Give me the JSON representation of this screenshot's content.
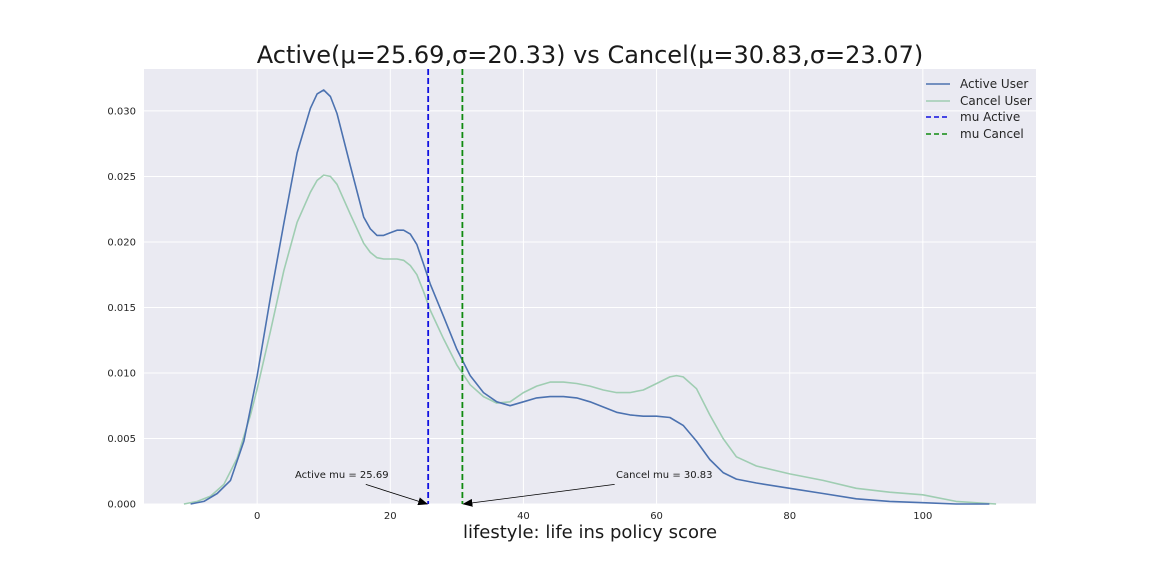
{
  "chart_data": {
    "type": "line",
    "title": "Active(μ=25.69,σ=20.33) vs Cancel(μ=30.83,σ=23.07)",
    "xlabel": "lifestyle: life ins policy score",
    "ylabel": "",
    "xlim": [
      -17,
      117
    ],
    "ylim": [
      0,
      0.0332
    ],
    "xticks": [
      0,
      20,
      40,
      60,
      80,
      100
    ],
    "yticks": [
      0.0,
      0.005,
      0.01,
      0.015,
      0.02,
      0.025,
      0.03
    ],
    "ytick_labels": [
      "0.000",
      "0.005",
      "0.010",
      "0.015",
      "0.020",
      "0.025",
      "0.030"
    ],
    "grid": true,
    "legend_position": "top-right",
    "colors": {
      "background": "#eaeaf2",
      "grid": "#ffffff",
      "active": "#4c72b0",
      "cancel": "#9fcdb2",
      "mu_active": "#1010e0",
      "mu_cancel": "#108a10"
    },
    "series": [
      {
        "name": "Active User",
        "x": [
          -10,
          -8,
          -6,
          -4,
          -2,
          0,
          2,
          4,
          6,
          8,
          9,
          10,
          11,
          12,
          14,
          16,
          17,
          18,
          19,
          20,
          21,
          22,
          23,
          24,
          25,
          26,
          28,
          30,
          32,
          34,
          36,
          38,
          40,
          42,
          44,
          46,
          48,
          50,
          52,
          54,
          56,
          58,
          60,
          62,
          64,
          66,
          68,
          70,
          72,
          75,
          80,
          85,
          90,
          95,
          100,
          105,
          110
        ],
        "values": [
          0.0,
          0.0002,
          0.0008,
          0.0018,
          0.0048,
          0.0098,
          0.0158,
          0.0214,
          0.0268,
          0.0302,
          0.0313,
          0.0316,
          0.0311,
          0.0298,
          0.0258,
          0.0219,
          0.021,
          0.0205,
          0.0205,
          0.0207,
          0.0209,
          0.0209,
          0.0206,
          0.0198,
          0.0183,
          0.0168,
          0.0143,
          0.0118,
          0.0098,
          0.0085,
          0.0078,
          0.0075,
          0.0078,
          0.0081,
          0.0082,
          0.0082,
          0.0081,
          0.0078,
          0.0074,
          0.007,
          0.0068,
          0.0067,
          0.0067,
          0.0066,
          0.006,
          0.0048,
          0.0034,
          0.0024,
          0.0019,
          0.0016,
          0.0012,
          0.0008,
          0.0004,
          0.0002,
          0.0001,
          0.0,
          0.0
        ]
      },
      {
        "name": "Cancel User",
        "x": [
          -11,
          -9,
          -7,
          -5,
          -3,
          -1,
          0,
          2,
          4,
          6,
          8,
          9,
          10,
          11,
          12,
          14,
          16,
          17,
          18,
          19,
          20,
          21,
          22,
          23,
          24,
          25,
          26,
          28,
          30,
          32,
          34,
          36,
          38,
          40,
          42,
          44,
          46,
          48,
          50,
          52,
          54,
          56,
          58,
          60,
          62,
          63,
          64,
          66,
          68,
          70,
          72,
          75,
          80,
          85,
          90,
          95,
          100,
          105,
          111
        ],
        "values": [
          0.0,
          0.0002,
          0.0006,
          0.0015,
          0.0035,
          0.0068,
          0.0088,
          0.0132,
          0.0178,
          0.0215,
          0.0238,
          0.0247,
          0.0251,
          0.025,
          0.0244,
          0.0221,
          0.0199,
          0.0192,
          0.0188,
          0.0187,
          0.0187,
          0.0187,
          0.0186,
          0.0182,
          0.0175,
          0.0162,
          0.0148,
          0.0126,
          0.0106,
          0.0091,
          0.0082,
          0.0077,
          0.0078,
          0.0085,
          0.009,
          0.0093,
          0.0093,
          0.0092,
          0.009,
          0.0087,
          0.0085,
          0.0085,
          0.0087,
          0.0092,
          0.0097,
          0.0098,
          0.0097,
          0.0088,
          0.0068,
          0.005,
          0.0036,
          0.0029,
          0.0023,
          0.0018,
          0.0012,
          0.0009,
          0.0007,
          0.0002,
          0.0
        ]
      }
    ],
    "vlines": [
      {
        "name": "mu Active",
        "x": 25.69
      },
      {
        "name": "mu Cancel",
        "x": 30.83
      }
    ],
    "legend": [
      "Active User",
      "Cancel User",
      "mu Active",
      "mu Cancel"
    ],
    "annotations": [
      {
        "text": "Active mu = 25.69",
        "x": 25.69,
        "y": 0.0,
        "text_x": 5.5,
        "text_y": 0.0018
      },
      {
        "text": "Cancel mu = 30.83",
        "x": 30.83,
        "y": 0.0,
        "text_x": 54,
        "text_y": 0.0018
      }
    ]
  }
}
